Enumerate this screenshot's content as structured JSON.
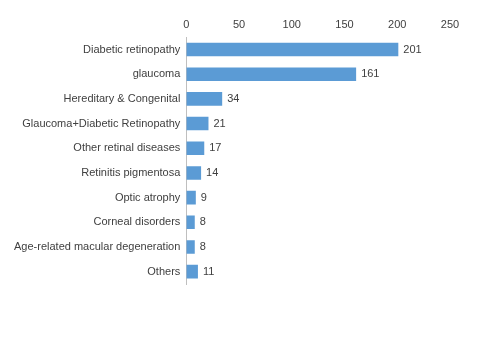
{
  "chart_data": {
    "type": "bar",
    "orientation": "horizontal",
    "categories": [
      "Diabetic retinopathy",
      "glaucoma",
      "Hereditary & Congenital",
      "Glaucoma+Diabetic Retinopathy",
      "Other retinal diseases",
      "Retinitis pigmentosa",
      "Optic atrophy",
      "Corneal disorders",
      "Age-related macular degeneration",
      "Others"
    ],
    "values": [
      201,
      161,
      34,
      21,
      17,
      14,
      9,
      8,
      8,
      11
    ],
    "color": "#5b9bd5",
    "xlim": [
      0,
      250
    ],
    "xticks": [
      0,
      50,
      100,
      150,
      200,
      250
    ],
    "grid": false,
    "data_labels": true
  }
}
